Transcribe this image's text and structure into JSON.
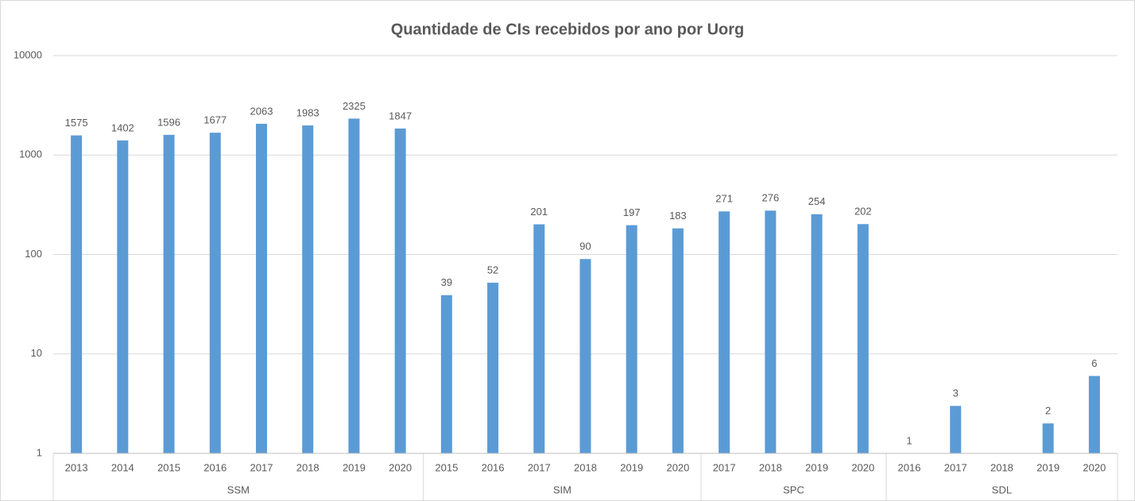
{
  "chart_data": {
    "type": "bar",
    "title": "Quantidade de CIs recebidos por ano por Uorg",
    "log_scale": true,
    "grid": true,
    "color": "#5b9bd5",
    "ylim": [
      1,
      10000
    ],
    "yticks": [
      1,
      10,
      100,
      1000,
      10000
    ],
    "groups": [
      {
        "name": "SSM",
        "categories": [
          "2013",
          "2014",
          "2015",
          "2016",
          "2017",
          "2018",
          "2019",
          "2020"
        ],
        "values": [
          1575,
          1402,
          1596,
          1677,
          2063,
          1983,
          2325,
          1847
        ]
      },
      {
        "name": "SIM",
        "categories": [
          "2015",
          "2016",
          "2017",
          "2018",
          "2019",
          "2020"
        ],
        "values": [
          39,
          52,
          201,
          90,
          197,
          183
        ]
      },
      {
        "name": "SPC",
        "categories": [
          "2017",
          "2018",
          "2019",
          "2020"
        ],
        "values": [
          271,
          276,
          254,
          202
        ]
      },
      {
        "name": "SDL",
        "categories": [
          "2016",
          "2017",
          "2018",
          "2019",
          "2020"
        ],
        "values": [
          1,
          3,
          null,
          2,
          6
        ]
      }
    ]
  }
}
